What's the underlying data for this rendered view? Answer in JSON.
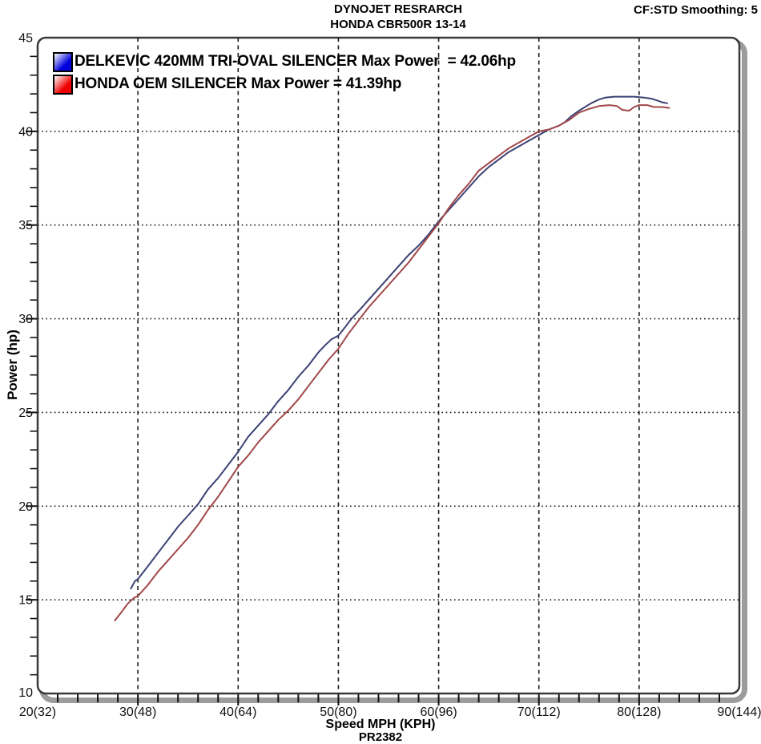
{
  "header": {
    "title_line1": "DYNOJET RESRARCH",
    "title_line2": "HONDA CBR500R 13-14",
    "cf_text": "CF:STD Smoothing: 5"
  },
  "legend": [
    {
      "label": "DELKEVIC 420MM TRI-OVAL SILENCER Max Power  = 42.06hp",
      "color": "#0000dd"
    },
    {
      "label": "HONDA OEM SILENCER Max Power = 41.39hp",
      "color": "#ee0000"
    }
  ],
  "footer": {
    "run_id": "PR2382"
  },
  "chart_data": {
    "type": "line",
    "xlabel": "Speed MPH (KPH)",
    "ylabel": "Power (hp)",
    "xlim": [
      20,
      90
    ],
    "ylim": [
      10,
      45
    ],
    "x_major_step": 10,
    "x_minor_step": 2,
    "y_major_step": 5,
    "y_minor_step": 1,
    "grid": true,
    "x_ticks": [
      {
        "mph": 20,
        "label": "20(32)"
      },
      {
        "mph": 30,
        "label": "30(48)"
      },
      {
        "mph": 40,
        "label": "40(64)"
      },
      {
        "mph": 50,
        "label": "50(80)"
      },
      {
        "mph": 60,
        "label": "60(96)"
      },
      {
        "mph": 70,
        "label": "70(112)"
      },
      {
        "mph": 80,
        "label": "80(128)"
      },
      {
        "mph": 90,
        "label": "90(144)"
      }
    ],
    "y_ticks": [
      {
        "hp": 10,
        "label": "10"
      },
      {
        "hp": 15,
        "label": "15"
      },
      {
        "hp": 20,
        "label": "20"
      },
      {
        "hp": 25,
        "label": "25"
      },
      {
        "hp": 30,
        "label": "30"
      },
      {
        "hp": 35,
        "label": "35"
      },
      {
        "hp": 40,
        "label": "40"
      },
      {
        "hp": 45,
        "label": "45"
      }
    ],
    "series": [
      {
        "name": "DELKEVIC 420MM TRI-OVAL SILENCER",
        "max_power_hp": 42.06,
        "color": "#3b4273",
        "points": [
          [
            29.3,
            15.6
          ],
          [
            29.7,
            16.0
          ],
          [
            30,
            16.1
          ],
          [
            31,
            16.8
          ],
          [
            32,
            17.5
          ],
          [
            33,
            18.2
          ],
          [
            34,
            18.9
          ],
          [
            35,
            19.5
          ],
          [
            36,
            20.1
          ],
          [
            37,
            20.9
          ],
          [
            38,
            21.5
          ],
          [
            39,
            22.2
          ],
          [
            40,
            22.9
          ],
          [
            41,
            23.7
          ],
          [
            42,
            24.3
          ],
          [
            43,
            24.9
          ],
          [
            44,
            25.6
          ],
          [
            45,
            26.2
          ],
          [
            46,
            26.9
          ],
          [
            47,
            27.5
          ],
          [
            48,
            28.2
          ],
          [
            48.7,
            28.6
          ],
          [
            49.3,
            28.9
          ],
          [
            50,
            29.1
          ],
          [
            50.6,
            29.5
          ],
          [
            51.3,
            30.0
          ],
          [
            52,
            30.4
          ],
          [
            53,
            31.0
          ],
          [
            54,
            31.6
          ],
          [
            55,
            32.2
          ],
          [
            56,
            32.8
          ],
          [
            57,
            33.4
          ],
          [
            58,
            33.9
          ],
          [
            59,
            34.5
          ],
          [
            60,
            35.2
          ],
          [
            61,
            35.8
          ],
          [
            62,
            36.4
          ],
          [
            63,
            37.0
          ],
          [
            64,
            37.6
          ],
          [
            65,
            38.1
          ],
          [
            66,
            38.5
          ],
          [
            67,
            38.9
          ],
          [
            68,
            39.2
          ],
          [
            69,
            39.5
          ],
          [
            70,
            39.8
          ],
          [
            71,
            40.1
          ],
          [
            72,
            40.3
          ],
          [
            72.6,
            40.5
          ],
          [
            73.2,
            40.8
          ],
          [
            74,
            41.1
          ],
          [
            74.6,
            41.3
          ],
          [
            75.2,
            41.5
          ],
          [
            76,
            41.7
          ],
          [
            76.6,
            41.8
          ],
          [
            77.5,
            41.85
          ],
          [
            78.5,
            41.85
          ],
          [
            79.5,
            41.85
          ],
          [
            80.5,
            41.8
          ],
          [
            81.2,
            41.75
          ],
          [
            81.8,
            41.65
          ],
          [
            82.3,
            41.55
          ],
          [
            82.8,
            41.5
          ]
        ]
      },
      {
        "name": "HONDA OEM SILENCER",
        "max_power_hp": 41.39,
        "color": "#a04749",
        "points": [
          [
            27.7,
            13.9
          ],
          [
            28.3,
            14.3
          ],
          [
            29,
            14.8
          ],
          [
            29.6,
            15.1
          ],
          [
            30,
            15.2
          ],
          [
            31,
            15.8
          ],
          [
            32,
            16.5
          ],
          [
            33,
            17.1
          ],
          [
            34,
            17.7
          ],
          [
            35,
            18.3
          ],
          [
            36,
            19.0
          ],
          [
            37,
            19.8
          ],
          [
            38,
            20.5
          ],
          [
            39,
            21.3
          ],
          [
            40,
            22.1
          ],
          [
            41,
            22.7
          ],
          [
            42,
            23.4
          ],
          [
            43,
            24.0
          ],
          [
            44,
            24.6
          ],
          [
            45,
            25.1
          ],
          [
            46,
            25.7
          ],
          [
            47,
            26.4
          ],
          [
            48,
            27.1
          ],
          [
            49,
            27.8
          ],
          [
            50,
            28.4
          ],
          [
            51,
            29.2
          ],
          [
            52,
            29.9
          ],
          [
            53,
            30.6
          ],
          [
            54,
            31.2
          ],
          [
            55,
            31.8
          ],
          [
            56,
            32.4
          ],
          [
            57,
            33.0
          ],
          [
            58,
            33.7
          ],
          [
            59,
            34.4
          ],
          [
            60,
            35.1
          ],
          [
            61,
            35.9
          ],
          [
            62,
            36.6
          ],
          [
            63,
            37.2
          ],
          [
            64,
            37.9
          ],
          [
            65,
            38.3
          ],
          [
            66,
            38.7
          ],
          [
            67,
            39.1
          ],
          [
            68,
            39.4
          ],
          [
            69,
            39.7
          ],
          [
            70,
            40.0
          ],
          [
            71,
            40.1
          ],
          [
            72,
            40.3
          ],
          [
            73,
            40.6
          ],
          [
            74,
            41.0
          ],
          [
            75,
            41.2
          ],
          [
            76,
            41.35
          ],
          [
            77,
            41.4
          ],
          [
            77.8,
            41.35
          ],
          [
            78.3,
            41.15
          ],
          [
            79,
            41.1
          ],
          [
            79.5,
            41.3
          ],
          [
            80,
            41.4
          ],
          [
            80.8,
            41.4
          ],
          [
            81.5,
            41.3
          ],
          [
            82.3,
            41.3
          ],
          [
            83,
            41.25
          ]
        ]
      }
    ]
  }
}
